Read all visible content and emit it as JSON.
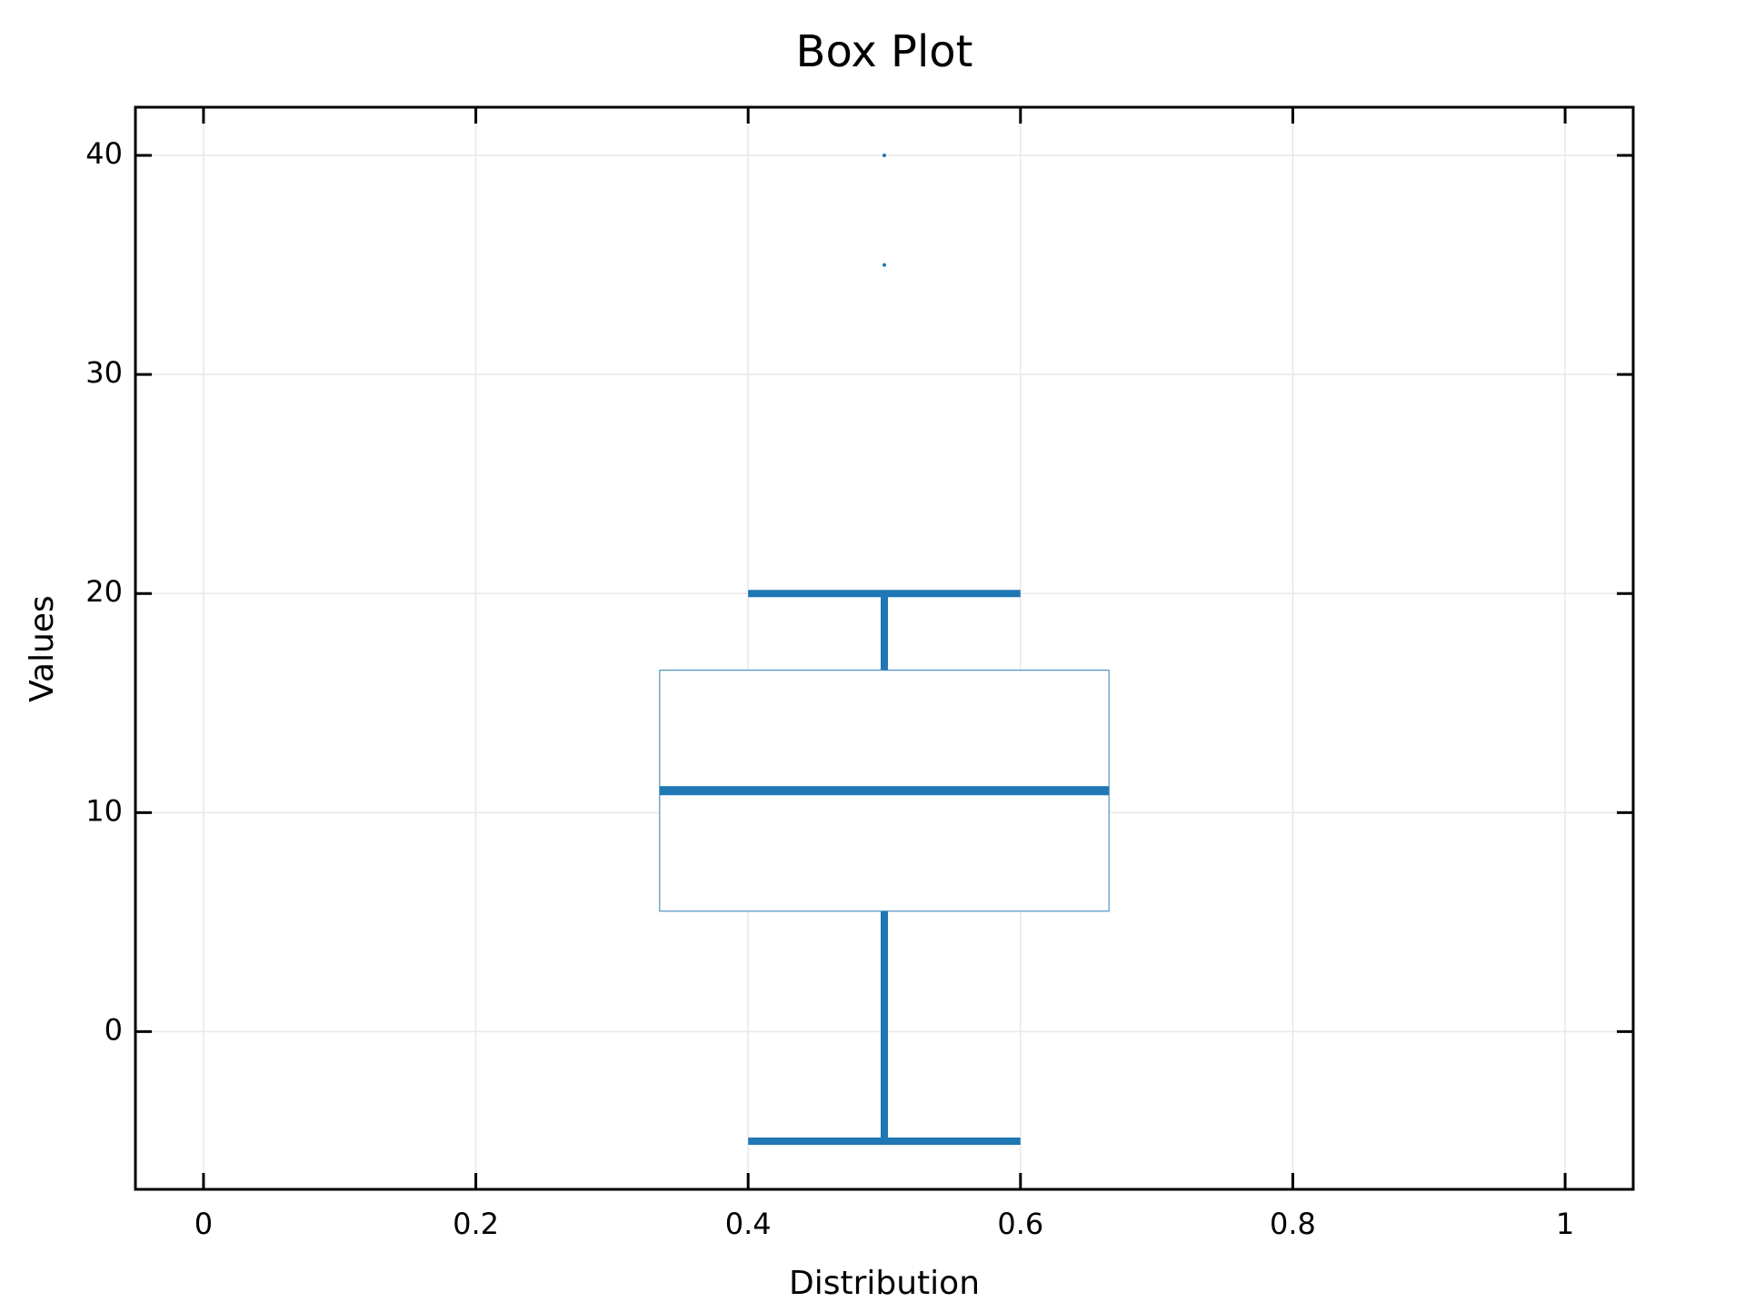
{
  "chart_data": {
    "type": "box",
    "title": "Box Plot",
    "x_label": "Distribution",
    "y_label": "Values",
    "color": "#1f77b4",
    "boxes": [
      {
        "x": 0.5,
        "whislo": -5,
        "q1": 5.5,
        "med": 11,
        "q3": 16.5,
        "whishi": 20,
        "fliers": [
          35,
          40
        ]
      }
    ],
    "xlim": [
      -0.05,
      1.05
    ],
    "xticks": [
      0,
      0.2,
      0.4,
      0.6,
      0.8,
      1
    ],
    "ylim": [
      -7.2,
      42.2
    ],
    "yticks": [
      0,
      10,
      20,
      30,
      40
    ],
    "grid": true
  }
}
